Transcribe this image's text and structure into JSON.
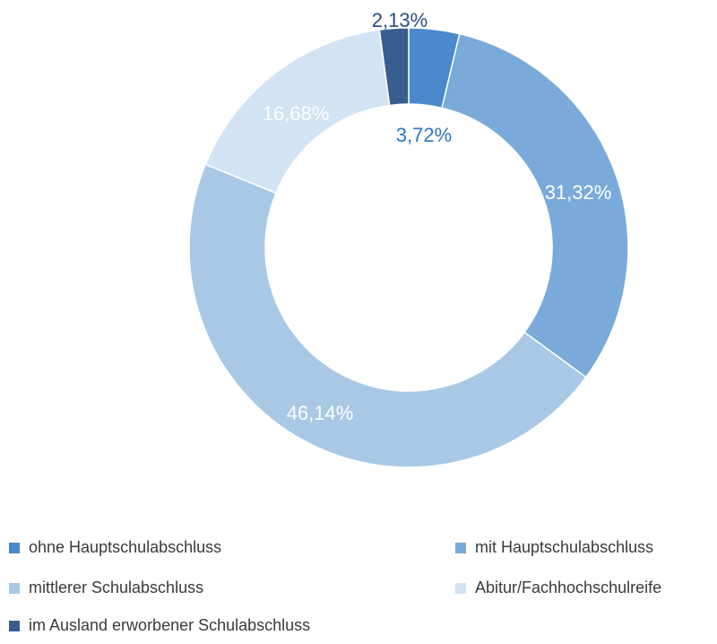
{
  "chart_data": {
    "type": "pie",
    "variant": "donut",
    "legend_position": "bottom",
    "series": [
      {
        "name": "ohne Hauptschulabschluss",
        "value": 3.72,
        "label": "3,72%",
        "color": "#4a89cb",
        "label_color": "#2f74c0"
      },
      {
        "name": "mit Hauptschulabschluss",
        "value": 31.32,
        "label": "31,32%",
        "color": "#7aaad9",
        "label_color": "#ffffff"
      },
      {
        "name": "mittlerer Schulabschluss",
        "value": 46.14,
        "label": "46,14%",
        "color": "#a8c8e6",
        "label_color": "#ffffff"
      },
      {
        "name": "Abitur/Fachhochschulreife",
        "value": 16.68,
        "label": "16,68%",
        "color": "#d2e3f3",
        "label_color": "#ffffff"
      },
      {
        "name": "im Ausland erworbener Schulabschluss",
        "value": 2.13,
        "label": "2,13%",
        "color": "#3a5d8f",
        "label_color": "#2a4d7f"
      }
    ]
  },
  "legend": {
    "items": [
      {
        "label": "ohne Hauptschulabschluss",
        "color": "#4a89cb"
      },
      {
        "label": "mit Hauptschulabschluss",
        "color": "#7aaad9"
      },
      {
        "label": "mittlerer Schulabschluss",
        "color": "#a8c8e6"
      },
      {
        "label": "Abitur/Fachhochschulreife",
        "color": "#d2e3f3"
      },
      {
        "label": "im Ausland erworbener Schulabschluss",
        "color": "#3a5d8f"
      }
    ]
  }
}
